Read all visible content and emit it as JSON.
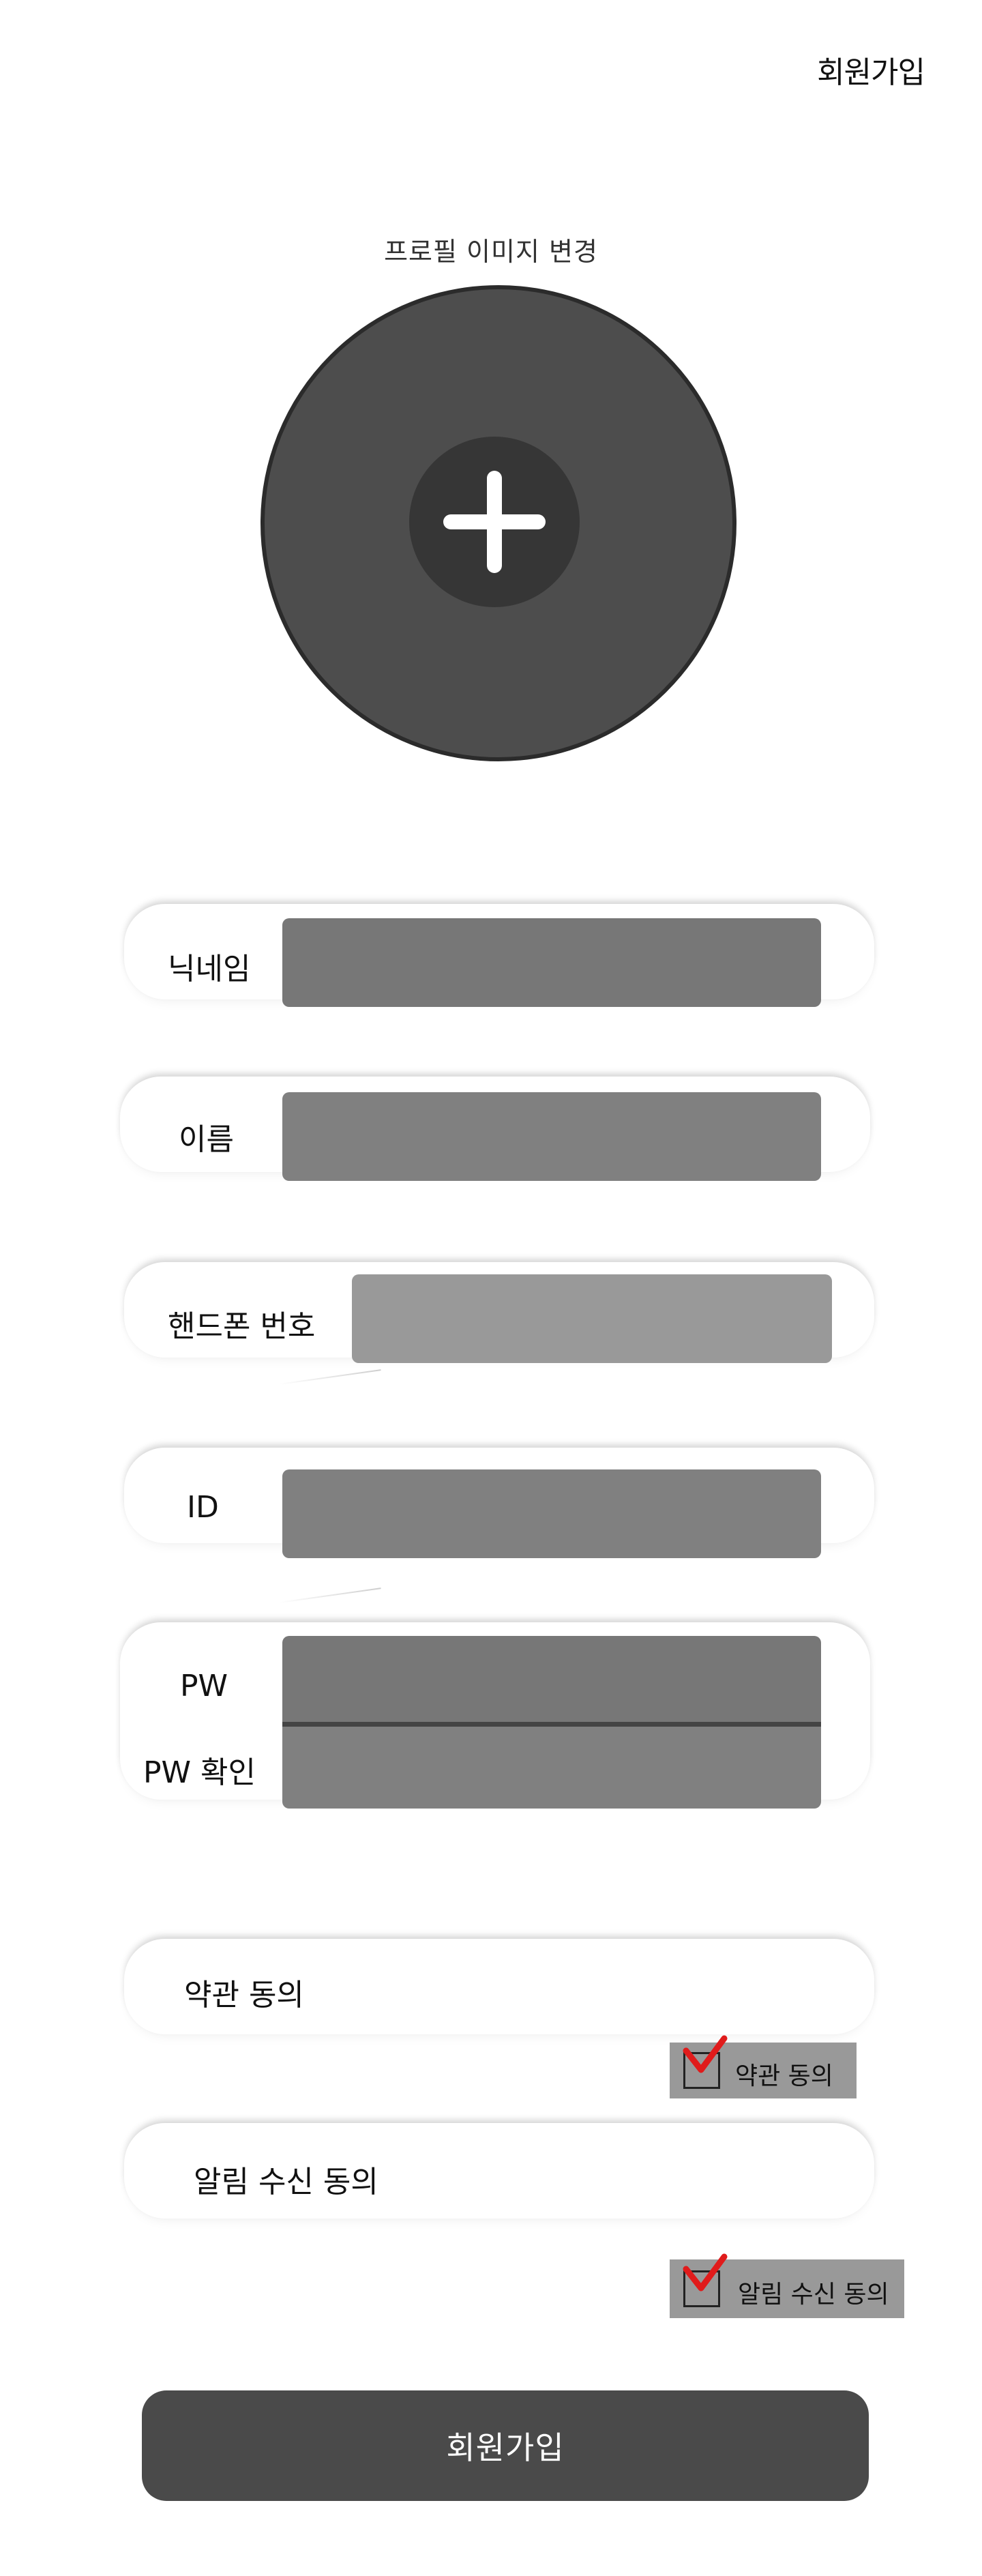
{
  "header": {
    "title": "회원가입"
  },
  "profile": {
    "label": "프로필 이미지 변경",
    "add_icon": "plus-icon"
  },
  "form": {
    "nickname": {
      "label": "닉네임",
      "value": ""
    },
    "name": {
      "label": "이름",
      "value": ""
    },
    "phone": {
      "label": "핸드폰 번호",
      "value": ""
    },
    "id": {
      "label": "ID",
      "value": ""
    },
    "pw": {
      "label": "PW",
      "value": ""
    },
    "pw_confirm": {
      "label": "PW 확인",
      "value": ""
    }
  },
  "agreements": {
    "terms": {
      "card_label": "약관 동의",
      "checkbox_label": "약관 동의",
      "checked": true
    },
    "notifications": {
      "card_label": "알림 수신 동의",
      "checkbox_label": "알림 수신 동의",
      "checked": true
    }
  },
  "submit": {
    "label": "회원가입"
  },
  "colors": {
    "avatar": "#4d4d4d",
    "input_dark": "#777777",
    "input_mid": "#808080",
    "input_light": "#999999",
    "checkbox_badge": "#999999",
    "check_mark": "#e01b1b",
    "submit_button": "#4a4a4a"
  }
}
